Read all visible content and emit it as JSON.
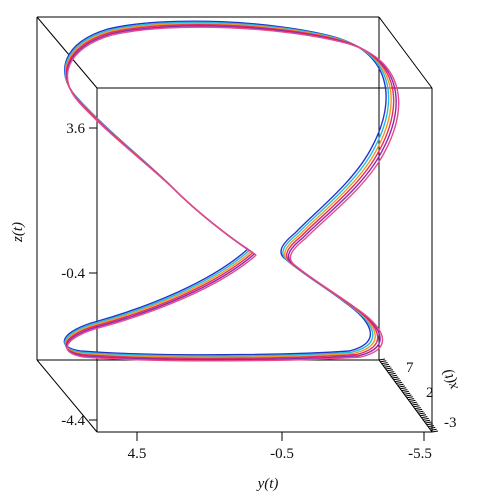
{
  "chart_data": {
    "type": "line",
    "projection": "3d-box",
    "title": "",
    "axes": {
      "x": {
        "label": "x(t)",
        "ticks": [
          "-3",
          "2",
          "7"
        ],
        "range": [
          -3,
          7
        ]
      },
      "y": {
        "label": "y(t)",
        "ticks": [
          "4.5",
          "-0.5",
          "-5.5"
        ],
        "range": [
          4.5,
          -5.5
        ]
      },
      "z": {
        "label": "z(t)",
        "ticks": [
          "-4.4",
          "-0.4",
          "3.6"
        ],
        "range": [
          -4.4,
          3.6
        ]
      }
    },
    "grid": false,
    "legend": "none",
    "series": [
      {
        "color": "#2233cc"
      },
      {
        "color": "#22bbdd"
      },
      {
        "color": "#ee9922"
      },
      {
        "color": "#e82a5a"
      },
      {
        "color": "#8a2bb0"
      },
      {
        "color": "#e84a8a"
      }
    ]
  }
}
